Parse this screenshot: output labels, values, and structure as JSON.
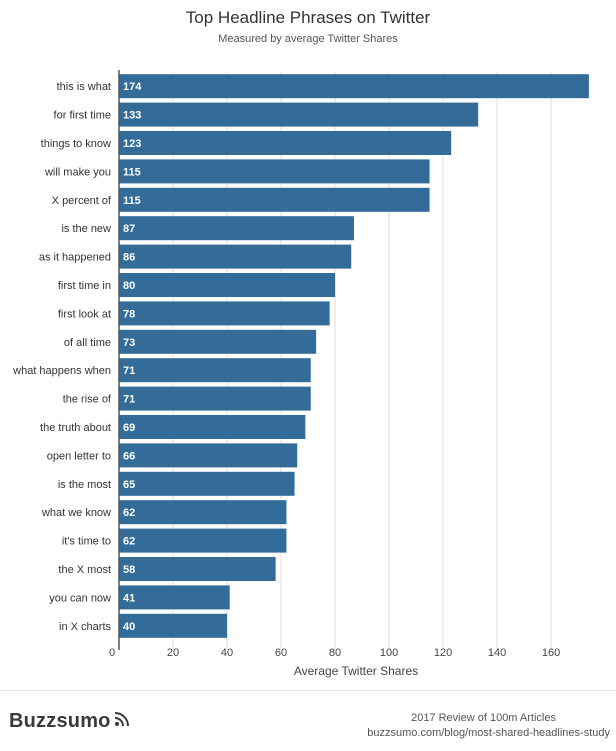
{
  "chart_data": {
    "type": "bar",
    "orientation": "horizontal",
    "title": "Top Headline Phrases on Twitter",
    "subtitle": "Measured by average Twitter Shares",
    "xlabel": "Average Twitter Shares",
    "ylabel": "",
    "xlim": [
      0,
      177
    ],
    "xticks": [
      0,
      20,
      40,
      60,
      80,
      100,
      120,
      140,
      160
    ],
    "grid": true,
    "bar_color": "#336b99",
    "categories": [
      "this is what",
      "for first time",
      "things to know",
      "will make you",
      "X percent of",
      "is the new",
      "as it happened",
      "first time in",
      "first look at",
      "of all time",
      "what happens when",
      "the rise of",
      "the truth about",
      "open letter to",
      "is the most",
      "what we know",
      "it's time to",
      "the X most",
      "you can now",
      "in X charts"
    ],
    "values": [
      174,
      133,
      123,
      115,
      115,
      87,
      86,
      80,
      78,
      73,
      71,
      71,
      69,
      66,
      65,
      62,
      62,
      58,
      41,
      40
    ]
  },
  "footer": {
    "brand": "Buzzsumo",
    "review": "2017 Review of 100m Articles",
    "url": "buzzsumo.com/blog/most-shared-headlines-study"
  },
  "colors": {
    "bar": "#336b99",
    "grid": "#dddddd",
    "axis": "#555555"
  }
}
